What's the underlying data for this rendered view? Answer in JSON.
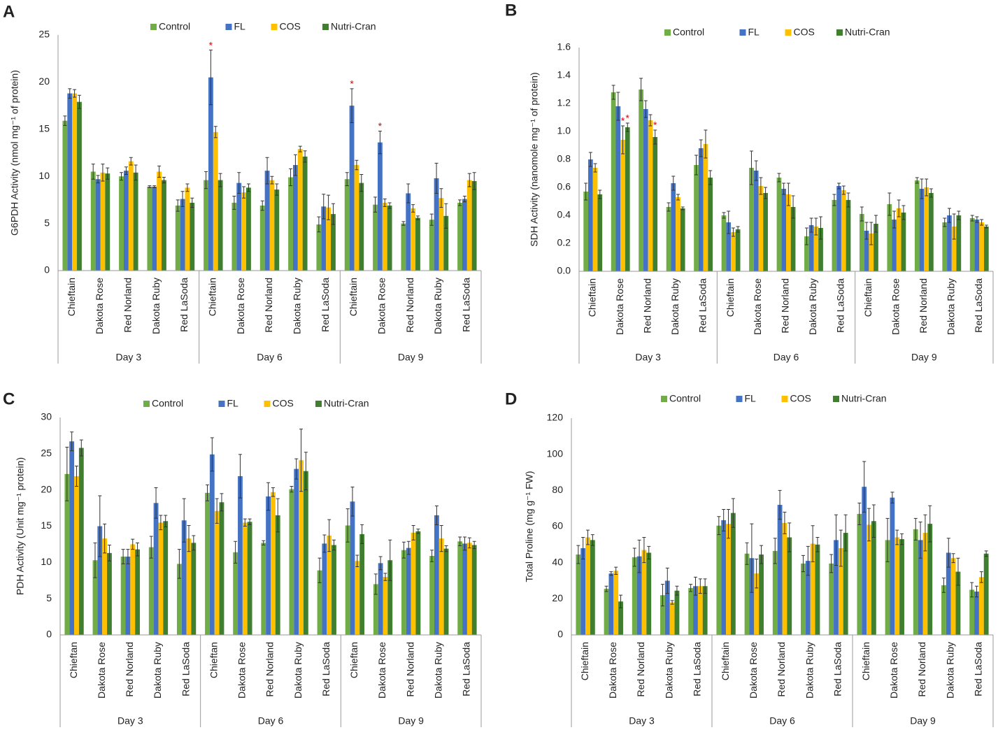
{
  "chart_data": [
    {
      "type": "bar",
      "label": "A",
      "ylabel": "G6PDH Activity (nmol mg⁻¹ of protein)",
      "categories": [
        "Chieftain",
        "Dakota Rose",
        "Red Norland",
        "Dakota Ruby",
        "Red LaSoda",
        "Chieftain",
        "Dakota Rose",
        "Red Norland",
        "Dakota Ruby",
        "Red LaSoda",
        "Chieftain",
        "Dakota Rose",
        "Red Norland",
        "Dakota Ruby",
        "Red LaSoda"
      ],
      "groups": [
        "Day 3",
        "Day 6",
        "Day 9"
      ],
      "ylim": [
        0,
        25
      ],
      "yticks": [
        0,
        5,
        10,
        15,
        20,
        25
      ],
      "grid": false,
      "series": [
        {
          "name": "Control",
          "color": "#70ad47",
          "values": [
            15.9,
            10.5,
            10.0,
            8.9,
            6.9,
            9.6,
            7.2,
            6.9,
            9.9,
            4.9,
            9.7,
            7.0,
            5.0,
            5.4,
            7.2
          ],
          "errors": [
            0.5,
            0.8,
            0.4,
            0.1,
            0.6,
            0.9,
            0.7,
            0.5,
            0.9,
            0.8,
            0.7,
            0.8,
            0.2,
            0.6,
            0.3
          ]
        },
        {
          "name": "FL",
          "color": "#4472c4",
          "values": [
            18.8,
            9.7,
            10.6,
            8.9,
            7.6,
            20.5,
            9.3,
            10.6,
            11.2,
            6.8,
            17.5,
            13.6,
            8.2,
            9.8,
            7.6
          ],
          "errors": [
            0.5,
            0.4,
            0.4,
            0.1,
            0.8,
            2.9,
            1.1,
            1.4,
            1.1,
            1.3,
            1.8,
            1.2,
            1.0,
            1.6,
            0.3
          ],
          "stars": [
            null,
            null,
            null,
            null,
            null,
            "*",
            null,
            null,
            null,
            null,
            "*",
            "*",
            null,
            null,
            null
          ]
        },
        {
          "name": "COS",
          "color": "#ffc000",
          "values": [
            18.8,
            10.4,
            11.6,
            10.5,
            8.8,
            14.7,
            8.3,
            9.6,
            12.9,
            6.7,
            11.2,
            7.2,
            6.6,
            7.7,
            9.6
          ],
          "errors": [
            0.4,
            0.9,
            0.4,
            0.6,
            0.4,
            0.6,
            0.6,
            0.4,
            0.3,
            1.3,
            0.5,
            0.4,
            0.4,
            1.0,
            0.7
          ]
        },
        {
          "name": "Nutri-Cran",
          "color": "#3f7f2f",
          "values": [
            17.9,
            10.3,
            10.4,
            9.6,
            7.2,
            9.6,
            8.8,
            8.6,
            12.1,
            6.0,
            9.3,
            6.9,
            5.6,
            5.8,
            9.5
          ],
          "errors": [
            0.7,
            0.6,
            0.8,
            0.3,
            0.5,
            0.7,
            0.4,
            0.6,
            0.6,
            1.1,
            0.9,
            0.3,
            0.2,
            1.3,
            0.9
          ]
        }
      ]
    },
    {
      "type": "bar",
      "label": "B",
      "ylabel": "SDH Activity (nanomole  mg⁻¹ of protein)",
      "categories": [
        "Chieftain",
        "Dakota Rose",
        "Red Norland",
        "Dakota Ruby",
        "Red LaSoda",
        "Chieftain",
        "Dakota Rose",
        "Red Norland",
        "Dakota Ruby",
        "Red LaSoda",
        "Chieftain",
        "Dakota Rose",
        "Red Norland",
        "Dakota Ruby",
        "Red LaSoda"
      ],
      "groups": [
        "Day 3",
        "Day 6",
        "Day 9"
      ],
      "ylim": [
        0,
        1.6
      ],
      "yticks": [
        {
          "value": 0,
          "label": "0.0"
        },
        0.2,
        0.4,
        0.6,
        0.8,
        {
          "value": 1,
          "label": "1.0"
        },
        1.2,
        1.4,
        1.6
      ],
      "grid": false,
      "series": [
        {
          "name": "Control",
          "color": "#70ad47",
          "values": [
            0.57,
            1.28,
            1.3,
            0.46,
            0.76,
            0.4,
            0.74,
            0.67,
            0.25,
            0.51,
            0.41,
            0.48,
            0.65,
            0.35,
            0.38
          ],
          "errors": [
            0.06,
            0.05,
            0.08,
            0.03,
            0.07,
            0.02,
            0.12,
            0.03,
            0.06,
            0.04,
            0.05,
            0.08,
            0.02,
            0.03,
            0.02
          ]
        },
        {
          "name": "FL",
          "color": "#4472c4",
          "values": [
            0.8,
            1.18,
            1.16,
            0.63,
            0.88,
            0.35,
            0.72,
            0.59,
            0.33,
            0.61,
            0.29,
            0.37,
            0.59,
            0.4,
            0.37
          ],
          "errors": [
            0.05,
            0.1,
            0.06,
            0.05,
            0.06,
            0.08,
            0.07,
            0.04,
            0.05,
            0.02,
            0.06,
            0.06,
            0.07,
            0.05,
            0.02
          ]
        },
        {
          "name": "COS",
          "color": "#ffc000",
          "values": [
            0.74,
            0.94,
            1.08,
            0.53,
            0.91,
            0.28,
            0.61,
            0.55,
            0.32,
            0.58,
            0.27,
            0.45,
            0.6,
            0.32,
            0.35
          ],
          "errors": [
            0.03,
            0.1,
            0.04,
            0.02,
            0.1,
            0.03,
            0.06,
            0.08,
            0.06,
            0.03,
            0.08,
            0.06,
            0.06,
            0.09,
            0.02
          ],
          "stars": [
            null,
            "*",
            null,
            null,
            null,
            null,
            null,
            null,
            null,
            null,
            null,
            null,
            null,
            null,
            null
          ]
        },
        {
          "name": "Nutri-Cran",
          "color": "#3f7f2f",
          "values": [
            0.55,
            1.03,
            0.96,
            0.45,
            0.67,
            0.3,
            0.56,
            0.46,
            0.31,
            0.51,
            0.34,
            0.42,
            0.56,
            0.4,
            0.32
          ],
          "errors": [
            0.03,
            0.03,
            0.05,
            0.01,
            0.05,
            0.02,
            0.04,
            0.08,
            0.08,
            0.05,
            0.06,
            0.05,
            0.03,
            0.03,
            0.01
          ],
          "stars": [
            null,
            "*",
            "*",
            null,
            null,
            null,
            null,
            null,
            null,
            null,
            null,
            null,
            null,
            null,
            null
          ]
        }
      ]
    },
    {
      "type": "bar",
      "label": "C",
      "ylabel": "PDH Activity (Unit mg⁻¹ protein)",
      "categories": [
        "Chieftan",
        "Dakota Rose",
        "Red Norland",
        "Dakota Ruby",
        "Red LaSoda",
        "Chieftan",
        "Dakota Rose",
        "Red Norland",
        "Dakota Ruby",
        "Red LaSoda",
        "Chieftan",
        "Dakota Rose",
        "Red Norland",
        "Dakota Ruby",
        "Red LaSoda"
      ],
      "groups": [
        "Day 3",
        "Day 6",
        "Day 9"
      ],
      "ylim": [
        0,
        30
      ],
      "yticks": [
        0,
        5,
        10,
        15,
        20,
        25,
        30
      ],
      "grid": false,
      "series": [
        {
          "name": "Control",
          "color": "#70ad47",
          "values": [
            22.2,
            10.3,
            10.8,
            12.1,
            9.8,
            19.6,
            11.4,
            12.7,
            20.1,
            8.9,
            15.1,
            7.0,
            11.7,
            10.9,
            12.9
          ],
          "errors": [
            3.7,
            2.4,
            1.0,
            1.5,
            2.0,
            1.1,
            1.5,
            0.3,
            0.4,
            1.7,
            2.3,
            1.4,
            1.1,
            0.8,
            0.6
          ]
        },
        {
          "name": "FL",
          "color": "#4472c4",
          "values": [
            26.7,
            15.0,
            10.8,
            18.2,
            15.8,
            24.9,
            21.9,
            19.1,
            22.9,
            12.6,
            18.4,
            9.9,
            12.0,
            16.5,
            12.6
          ],
          "errors": [
            1.3,
            4.2,
            1.0,
            2.1,
            3.0,
            2.3,
            3.0,
            1.9,
            1.4,
            1.2,
            2.0,
            0.9,
            0.9,
            1.3,
            0.9
          ]
        },
        {
          "name": "COS",
          "color": "#ffc000",
          "values": [
            21.9,
            13.3,
            12.5,
            15.5,
            13.3,
            17.1,
            15.5,
            19.7,
            24.1,
            13.7,
            10.2,
            8.0,
            14.1,
            13.3,
            12.7
          ],
          "errors": [
            1.4,
            2.0,
            0.7,
            1.0,
            1.8,
            1.7,
            0.5,
            0.6,
            4.3,
            2.2,
            0.8,
            0.5,
            1.0,
            1.8,
            0.7
          ]
        },
        {
          "name": "Nutri-Cran",
          "color": "#3f7f2f",
          "values": [
            25.8,
            11.3,
            11.8,
            15.7,
            12.7,
            18.3,
            15.6,
            16.5,
            22.6,
            12.4,
            13.9,
            10.3,
            14.3,
            11.9,
            12.4
          ],
          "errors": [
            1.1,
            1.1,
            0.9,
            0.8,
            1.0,
            1.2,
            0.4,
            2.3,
            2.6,
            0.7,
            1.3,
            2.8,
            0.3,
            0.4,
            0.5
          ]
        }
      ]
    },
    {
      "type": "bar",
      "label": "D",
      "ylabel": "Total Proline (mg g⁻¹ FW)",
      "categories": [
        "Chieftain",
        "Dakota Rose",
        "Red Norland",
        "Dakota Ruby",
        "Red LaSoda",
        "Chieftain",
        "Dakota Rose",
        "Red Norland",
        "Dakota Ruby",
        "Red LaSoda",
        "Chieftain",
        "Dakota Rose",
        "Red Norland",
        "Dakota Ruby",
        "Red LaSoda"
      ],
      "groups": [
        "Day 3",
        "Day 6",
        "Day 9"
      ],
      "ylim": [
        0,
        120
      ],
      "yticks": [
        0,
        20,
        40,
        60,
        80,
        100,
        120
      ],
      "grid": false,
      "series": [
        {
          "name": "Control",
          "color": "#70ad47",
          "values": [
            44.5,
            25.5,
            43,
            22,
            26,
            60.5,
            45,
            46.5,
            39.5,
            39.5,
            67,
            52.5,
            58.5,
            27.5,
            25
          ],
          "errors": [
            5,
            1.5,
            5,
            6,
            2,
            5,
            6,
            7,
            4.5,
            5,
            6,
            12,
            6,
            4,
            4
          ]
        },
        {
          "name": "FL",
          "color": "#4472c4",
          "values": [
            48,
            34,
            43.5,
            30,
            27,
            63.5,
            42.5,
            72,
            41,
            52.5,
            82,
            76,
            52.5,
            45.5,
            24
          ],
          "errors": [
            6,
            1,
            9,
            7,
            5,
            6,
            19,
            8,
            8,
            14,
            14,
            3,
            10,
            8,
            3
          ]
        },
        {
          "name": "COS",
          "color": "#ffc000",
          "values": [
            54,
            35.5,
            47,
            18,
            27,
            61.5,
            34,
            62,
            50.5,
            48,
            61,
            54,
            56.5,
            42.5,
            32
          ],
          "errors": [
            4,
            2,
            7,
            1,
            4,
            8,
            8,
            6,
            10,
            10,
            9,
            4,
            10,
            2.5,
            3
          ]
        },
        {
          "name": "Nutri-Cran",
          "color": "#3f7f2f",
          "values": [
            52.5,
            18.5,
            45.5,
            24.5,
            27,
            67.5,
            44.5,
            54,
            50,
            56.5,
            63,
            53,
            61.5,
            35,
            45
          ],
          "errors": [
            3,
            3.5,
            3.5,
            2.5,
            4,
            8,
            5,
            8,
            4,
            10,
            9,
            3,
            10,
            7.5,
            1.5
          ]
        }
      ]
    }
  ]
}
